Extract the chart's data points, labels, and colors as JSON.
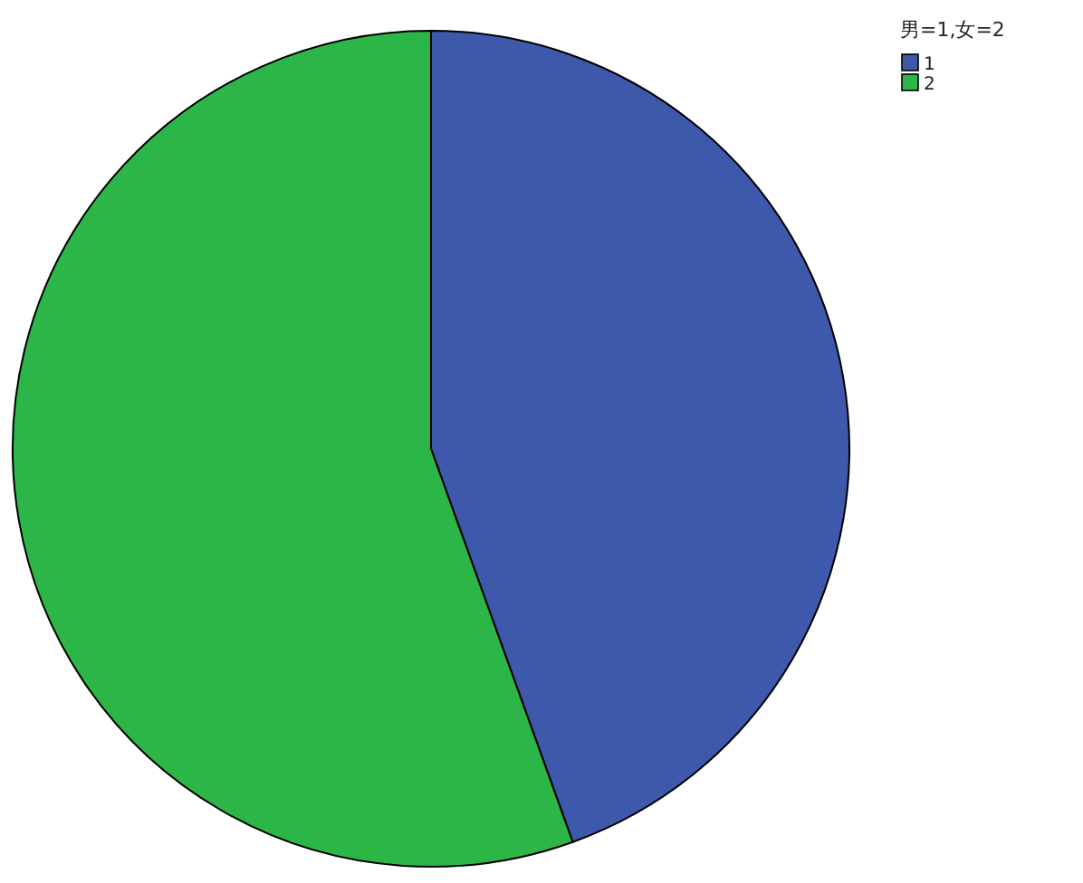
{
  "chart_data": {
    "type": "pie",
    "categories": [
      "1",
      "2"
    ],
    "values": [
      44.5,
      55.5
    ],
    "colors": [
      "#3e58ac",
      "#2db648"
    ],
    "legend_title": "男=1,女=2",
    "legend": "top right"
  }
}
